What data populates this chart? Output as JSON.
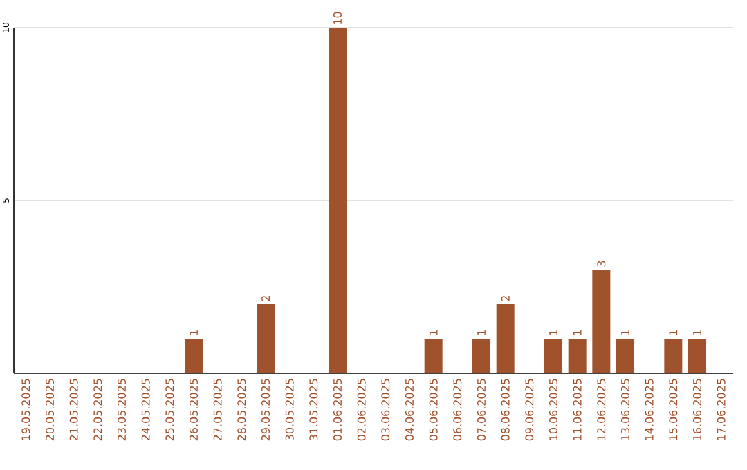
{
  "chart_data": {
    "type": "bar",
    "categories": [
      "19.05.2025",
      "20.05.2025",
      "21.05.2025",
      "22.05.2025",
      "23.05.2025",
      "24.05.2025",
      "25.05.2025",
      "26.05.2025",
      "27.05.2025",
      "28.05.2025",
      "29.05.2025",
      "30.05.2025",
      "31.05.2025",
      "01.06.2025",
      "02.06.2025",
      "03.06.2025",
      "04.06.2025",
      "05.06.2025",
      "06.06.2025",
      "07.06.2025",
      "08.06.2025",
      "09.06.2025",
      "10.06.2025",
      "11.06.2025",
      "12.06.2025",
      "13.06.2025",
      "14.06.2025",
      "15.06.2025",
      "16.06.2025",
      "17.06.2025"
    ],
    "values": [
      0,
      0,
      0,
      0,
      0,
      0,
      0,
      1,
      0,
      0,
      2,
      0,
      0,
      10,
      0,
      0,
      0,
      1,
      0,
      1,
      2,
      0,
      1,
      1,
      3,
      1,
      0,
      1,
      1,
      0
    ],
    "value_labels": [
      null,
      null,
      null,
      null,
      null,
      null,
      null,
      "1",
      null,
      null,
      "2",
      null,
      null,
      "10",
      null,
      null,
      null,
      "1",
      null,
      "1",
      "2",
      null,
      "1",
      "1",
      "3",
      "1",
      null,
      "1",
      "1",
      null
    ],
    "color": "#a0522d",
    "ylim": [
      0,
      10
    ],
    "yticks": [
      5,
      10
    ],
    "grid": "y"
  }
}
